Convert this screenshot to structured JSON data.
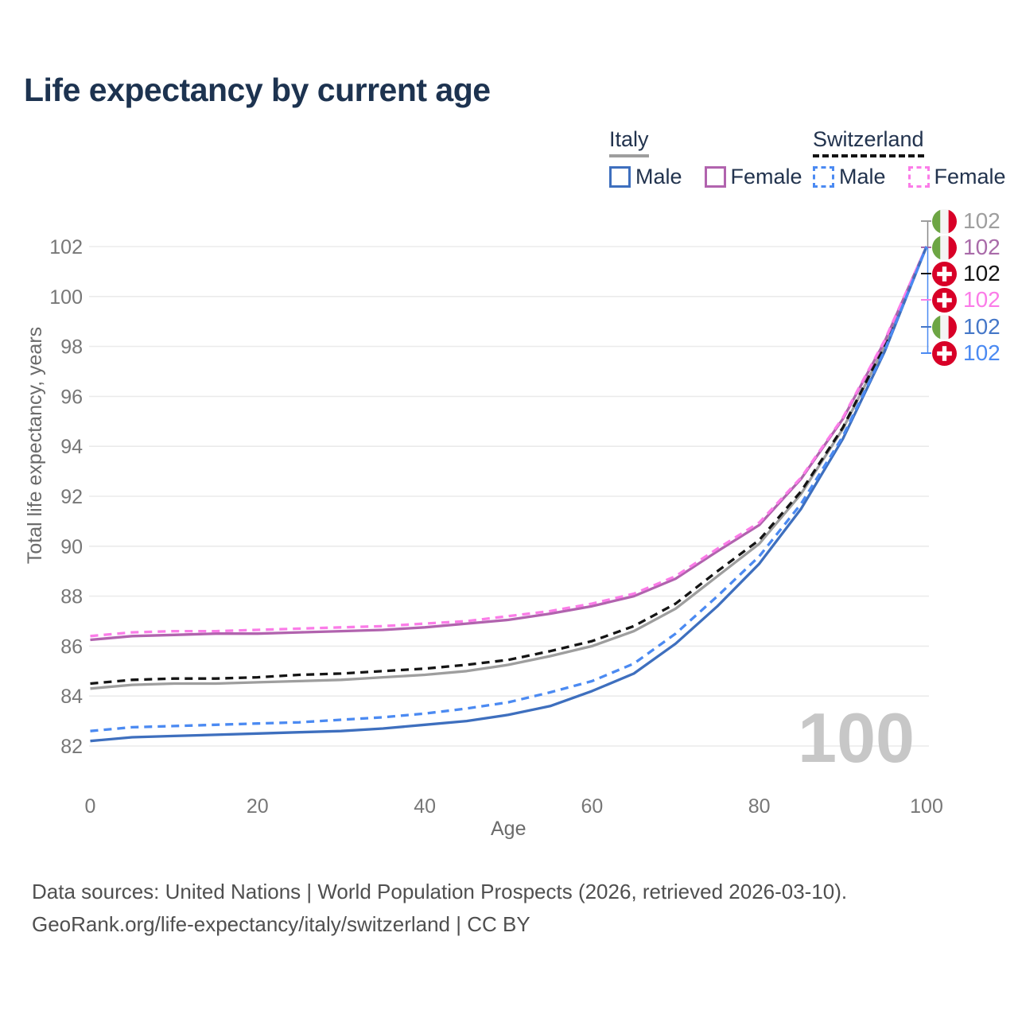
{
  "title": "Life expectancy by current age",
  "legend": {
    "groups": [
      {
        "country": "Italy",
        "items": [
          {
            "label": "Male"
          },
          {
            "label": "Female"
          }
        ]
      },
      {
        "country": "Switzerland",
        "items": [
          {
            "label": "Male"
          },
          {
            "label": "Female"
          }
        ]
      }
    ]
  },
  "colors": {
    "title": "#1d3350",
    "italy_male": "#3e6fbe",
    "italy_female": "#b163ae",
    "italy_overall": "#9e9e9e",
    "swiss_male": "#4b8af2",
    "swiss_female": "#fb7ce8",
    "swiss_overall": "#141414",
    "grid": "#ebebeb",
    "watermark": "#c7c7c7",
    "axis_text": "#777777"
  },
  "watermark": "100",
  "end_labels": [
    {
      "flag": "italy-flag-icon",
      "value": "102",
      "color": "#9e9e9e"
    },
    {
      "flag": "italy-flag-icon",
      "value": "102",
      "color": "#a96ba9"
    },
    {
      "flag": "switzerland-flag-icon",
      "value": "102",
      "color": "#141414"
    },
    {
      "flag": "switzerland-flag-icon",
      "value": "102",
      "color": "#fb7ce8"
    },
    {
      "flag": "italy-flag-icon",
      "value": "102",
      "color": "#4577c8"
    },
    {
      "flag": "switzerland-flag-icon",
      "value": "102",
      "color": "#4b8af2"
    }
  ],
  "footer": {
    "line1": "Data sources: United Nations | World Population Prospects (2026, retrieved 2026-03-10).",
    "line2": "GeoRank.org/life-expectancy/italy/switzerland | CC BY"
  },
  "chart_data": {
    "type": "line",
    "title": "Life expectancy by current age",
    "xlabel": "Age",
    "ylabel": "Total life expectancy, years",
    "xlim": [
      0,
      100
    ],
    "ylim": [
      81,
      103
    ],
    "xticks": [
      0,
      20,
      40,
      60,
      80,
      100
    ],
    "yticks": [
      82,
      84,
      86,
      88,
      90,
      92,
      94,
      96,
      98,
      100,
      102
    ],
    "grid": "horizontal-only",
    "legend_position": "top-right",
    "hovered_age": 100,
    "x": [
      0,
      5,
      10,
      15,
      20,
      25,
      30,
      35,
      40,
      45,
      50,
      55,
      60,
      65,
      70,
      75,
      80,
      85,
      90,
      95,
      100
    ],
    "series": [
      {
        "name": "Italy Overall",
        "country": "Italy",
        "sex": "overall",
        "color": "#9e9e9e",
        "dashed": false,
        "values": [
          84.3,
          84.45,
          84.5,
          84.5,
          84.55,
          84.6,
          84.65,
          84.75,
          84.85,
          85.0,
          85.25,
          85.6,
          86.0,
          86.6,
          87.5,
          88.8,
          90.1,
          92.1,
          94.7,
          98.0,
          102
        ]
      },
      {
        "name": "Switzerland Overall",
        "country": "Switzerland",
        "sex": "overall",
        "color": "#141414",
        "dashed": true,
        "values": [
          84.5,
          84.65,
          84.7,
          84.7,
          84.75,
          84.85,
          84.9,
          85.0,
          85.1,
          85.25,
          85.45,
          85.8,
          86.2,
          86.8,
          87.7,
          89.0,
          90.25,
          92.2,
          94.75,
          98.05,
          102
        ]
      },
      {
        "name": "Italy Female",
        "country": "Italy",
        "sex": "female",
        "color": "#b163ae",
        "dashed": false,
        "values": [
          86.25,
          86.4,
          86.45,
          86.5,
          86.5,
          86.55,
          86.6,
          86.65,
          86.75,
          86.9,
          87.05,
          87.3,
          87.6,
          88.0,
          88.7,
          89.8,
          90.85,
          92.7,
          95.1,
          98.2,
          102
        ]
      },
      {
        "name": "Switzerland Female",
        "country": "Switzerland",
        "sex": "female",
        "color": "#fb7ce8",
        "dashed": true,
        "values": [
          86.4,
          86.55,
          86.6,
          86.6,
          86.65,
          86.7,
          86.75,
          86.8,
          86.9,
          87.0,
          87.2,
          87.4,
          87.7,
          88.1,
          88.8,
          89.9,
          90.95,
          92.75,
          95.15,
          98.25,
          102
        ]
      },
      {
        "name": "Italy Male",
        "country": "Italy",
        "sex": "male",
        "color": "#3e6fbe",
        "dashed": false,
        "values": [
          82.2,
          82.35,
          82.4,
          82.45,
          82.5,
          82.55,
          82.6,
          82.7,
          82.85,
          83.0,
          83.25,
          83.6,
          84.2,
          84.9,
          86.1,
          87.6,
          89.3,
          91.5,
          94.3,
          97.8,
          102
        ]
      },
      {
        "name": "Switzerland Male",
        "country": "Switzerland",
        "sex": "male",
        "color": "#4b8af2",
        "dashed": true,
        "values": [
          82.6,
          82.75,
          82.8,
          82.85,
          82.9,
          82.95,
          83.05,
          83.15,
          83.3,
          83.5,
          83.75,
          84.15,
          84.6,
          85.3,
          86.5,
          88.0,
          89.6,
          91.7,
          94.4,
          97.85,
          102
        ]
      }
    ],
    "end_value_labels": [
      {
        "series": "Italy Overall",
        "value": 102
      },
      {
        "series": "Italy Female",
        "value": 102
      },
      {
        "series": "Switzerland Overall",
        "value": 102
      },
      {
        "series": "Switzerland Female",
        "value": 102
      },
      {
        "series": "Italy Male",
        "value": 102
      },
      {
        "series": "Switzerland Male",
        "value": 102
      }
    ]
  }
}
